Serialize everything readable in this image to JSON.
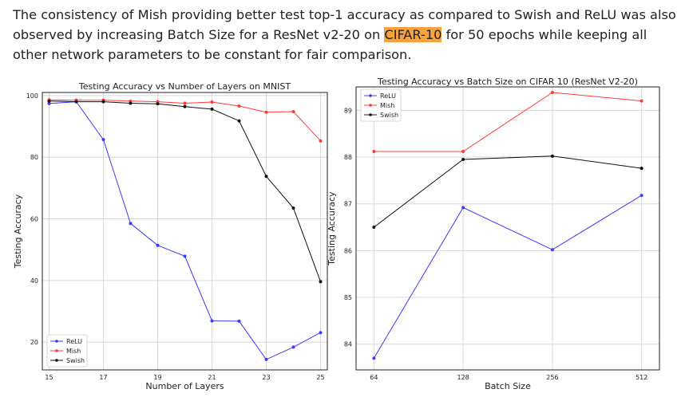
{
  "paragraph": {
    "before": "The consistency of Mish providing better test top-1 accuracy as compared to Swish and ReLU was also observed by increasing Batch Size for a ResNet v2-20 on ",
    "highlight": "CIFAR-10",
    "after": " for 50 epochs while keeping all other network parameters to be constant for fair comparison."
  },
  "colors": {
    "relu": "#3a3aff",
    "mish": "#ff3b3b",
    "swish": "#111111",
    "highlight": "#f7a23c",
    "grid": "#d9d9d9"
  },
  "chart_data": [
    {
      "type": "line",
      "title": "Testing Accuracy vs Number of Layers on MNIST",
      "xlabel": "Number of Layers",
      "ylabel": "Testing Accuracy",
      "x": [
        15,
        16,
        17,
        18,
        19,
        20,
        21,
        22,
        23,
        24,
        25
      ],
      "xticks": [
        15,
        17,
        19,
        21,
        23,
        25
      ],
      "yticks": [
        20,
        40,
        60,
        80,
        100
      ],
      "xlim": [
        14.75,
        25.25
      ],
      "ylim": [
        11,
        101
      ],
      "grid": true,
      "legend": "bottom-left",
      "series": [
        {
          "name": "ReLU",
          "color": "#3a3aff",
          "values": [
            97.4,
            98.0,
            85.7,
            58.5,
            51.4,
            47.9,
            26.9,
            26.8,
            14.4,
            18.4,
            23.1
          ]
        },
        {
          "name": "Mish",
          "color": "#ff3b3b",
          "values": [
            98.6,
            98.5,
            98.5,
            98.2,
            98.0,
            97.5,
            97.9,
            96.6,
            94.6,
            94.8,
            85.3
          ]
        },
        {
          "name": "Swish",
          "color": "#111111",
          "values": [
            98.2,
            98.0,
            98.0,
            97.5,
            97.3,
            96.4,
            95.6,
            91.8,
            73.8,
            63.5,
            39.6
          ]
        }
      ]
    },
    {
      "type": "line",
      "title": "Testing Accuracy vs Batch Size on CIFAR 10 (ResNet V2-20)",
      "xlabel": "Batch Size",
      "ylabel": "Testing Accuracy",
      "categories": [
        "64",
        "128",
        "256",
        "512"
      ],
      "yticks": [
        84,
        85,
        86,
        87,
        88,
        89
      ],
      "ylim": [
        83.45,
        89.5
      ],
      "grid": true,
      "legend": "top-left",
      "series": [
        {
          "name": "ReLU",
          "color": "#3a3aff",
          "values": [
            83.7,
            86.92,
            86.02,
            87.18
          ]
        },
        {
          "name": "Mish",
          "color": "#ff3b3b",
          "values": [
            88.12,
            88.12,
            89.38,
            89.2
          ]
        },
        {
          "name": "Swish",
          "color": "#111111",
          "values": [
            86.5,
            87.95,
            88.02,
            87.76
          ]
        }
      ]
    }
  ]
}
